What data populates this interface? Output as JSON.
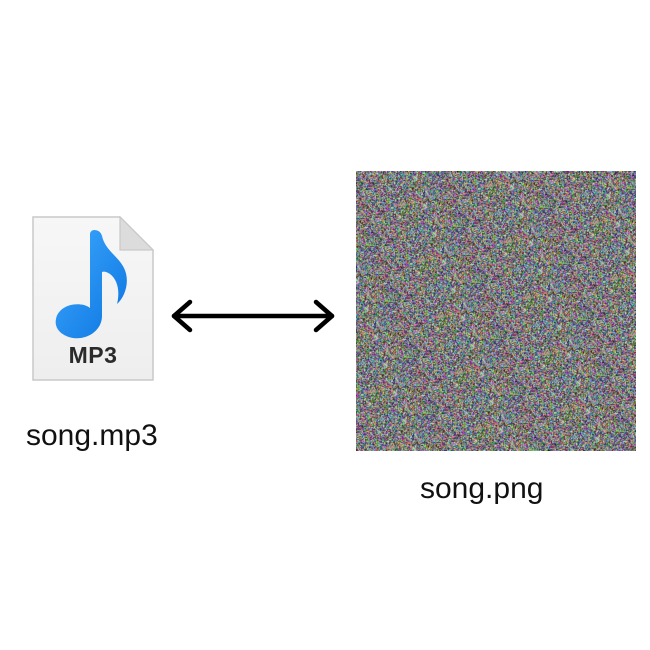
{
  "left_file": {
    "badge": "MP3",
    "filename": "song.mp3",
    "icon": "music-note-file-icon",
    "note_color": "#1a8cf0"
  },
  "connector": {
    "icon": "double-headed-arrow-icon"
  },
  "right_file": {
    "filename": "song.png",
    "image": "random-noise-image"
  }
}
